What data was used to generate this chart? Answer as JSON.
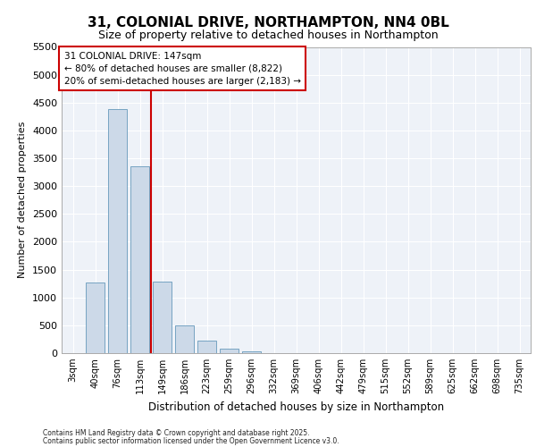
{
  "title_line1": "31, COLONIAL DRIVE, NORTHAMPTON, NN4 0BL",
  "title_line2": "Size of property relative to detached houses in Northampton",
  "xlabel": "Distribution of detached houses by size in Northampton",
  "ylabel": "Number of detached properties",
  "footnote1": "Contains HM Land Registry data © Crown copyright and database right 2025.",
  "footnote2": "Contains public sector information licensed under the Open Government Licence v3.0.",
  "annotation_line1": "31 COLONIAL DRIVE: 147sqm",
  "annotation_line2": "← 80% of detached houses are smaller (8,822)",
  "annotation_line3": "20% of semi-detached houses are larger (2,183) →",
  "bar_color": "#ccd9e8",
  "bar_edge_color": "#6699bb",
  "red_line_color": "#cc0000",
  "background_color": "#eef2f8",
  "grid_color": "#ffffff",
  "categories": [
    "3sqm",
    "40sqm",
    "76sqm",
    "113sqm",
    "149sqm",
    "186sqm",
    "223sqm",
    "259sqm",
    "296sqm",
    "332sqm",
    "369sqm",
    "406sqm",
    "442sqm",
    "479sqm",
    "515sqm",
    "552sqm",
    "589sqm",
    "625sqm",
    "662sqm",
    "698sqm",
    "735sqm"
  ],
  "values": [
    0,
    1270,
    4380,
    3350,
    1280,
    500,
    230,
    80,
    30,
    5,
    0,
    0,
    0,
    0,
    0,
    0,
    0,
    0,
    0,
    0,
    0
  ],
  "red_line_index": 3.5,
  "ylim": [
    0,
    5500
  ],
  "yticks": [
    0,
    500,
    1000,
    1500,
    2000,
    2500,
    3000,
    3500,
    4000,
    4500,
    5000,
    5500
  ]
}
